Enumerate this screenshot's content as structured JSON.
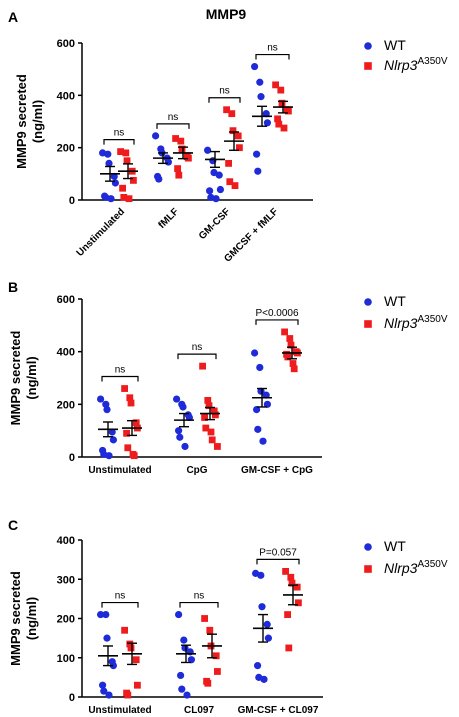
{
  "figure_title": "MMP9",
  "colors": {
    "wt": "#1f2ad8",
    "mutant": "#ee1c1c",
    "axis": "#000000"
  },
  "legend": {
    "wt_label": "WT",
    "mutant_label": "Nlrp3",
    "mutant_superscript": "A350V"
  },
  "chart_data": [
    {
      "panel": "A",
      "type": "scatter",
      "ylabel_line1": "MMP9 secreted",
      "ylabel_line2": "(ng/ml)",
      "ylim": [
        0,
        600
      ],
      "yticks": [
        "0",
        "200",
        "400",
        "600"
      ],
      "categories": [
        "Unstimulated",
        "fMLF",
        "GM-CSF",
        "GMCSF + fMLF"
      ],
      "rotate_labels": true,
      "series": [
        {
          "name": "WT",
          "points": [
            [
              180,
              175,
              140,
              90,
              65,
              15,
              10,
              5
            ],
            [
              245,
              195,
              180,
              160,
              145,
              90,
              80
            ],
            [
              190,
              150,
              105,
              95,
              40,
              35,
              10,
              5
            ],
            [
              510,
              450,
              395,
              330,
              295,
              175,
              110
            ]
          ],
          "mean": [
            100,
            160,
            155,
            320
          ],
          "sem": [
            28,
            20,
            30,
            38
          ]
        },
        {
          "name": "Nlrp3A350V",
          "points": [
            [
              185,
              180,
              150,
              110,
              75,
              45,
              10,
              5
            ],
            [
              235,
              225,
              195,
              165,
              160,
              120,
              95
            ],
            [
              345,
              330,
              265,
              245,
              200,
              140,
              70,
              55
            ],
            [
              440,
              420,
              370,
              345,
              340,
              310,
              290,
              275
            ]
          ],
          "mean": [
            110,
            180,
            225,
            355
          ],
          "sem": [
            28,
            22,
            35,
            22
          ]
        }
      ],
      "annotations": [
        {
          "group": 0,
          "text": "ns"
        },
        {
          "group": 1,
          "text": "ns"
        },
        {
          "group": 2,
          "text": "ns"
        },
        {
          "group": 3,
          "text": "ns"
        }
      ]
    },
    {
      "panel": "B",
      "type": "scatter",
      "ylabel_line1": "MMP9 secreted",
      "ylabel_line2": "(ng/ml)",
      "ylim": [
        0,
        600
      ],
      "yticks": [
        "0",
        "200",
        "400",
        "600"
      ],
      "categories": [
        "Unstimulated",
        "CpG",
        "GM-CSF + CpG"
      ],
      "rotate_labels": false,
      "series": [
        {
          "name": "WT",
          "points": [
            [
              220,
              200,
              180,
              95,
              65,
              25,
              10,
              5
            ],
            [
              220,
              200,
              190,
              160,
              150,
              100,
              75,
              40
            ],
            [
              395,
              340,
              250,
              235,
              200,
              180,
              105,
              60
            ]
          ],
          "mean": [
            105,
            140,
            225
          ],
          "sem": [
            28,
            25,
            35
          ]
        },
        {
          "name": "Nlrp3A350V",
          "points": [
            [
              260,
              225,
              205,
              130,
              110,
              90,
              35,
              10,
              5
            ],
            [
              345,
              215,
              195,
              175,
              160,
              150,
              110,
              95,
              65,
              40
            ],
            [
              475,
              450,
              425,
              400,
              395,
              390,
              380,
              355,
              335
            ]
          ],
          "mean": [
            110,
            165,
            395
          ],
          "sem": [
            28,
            23,
            22
          ]
        }
      ],
      "annotations": [
        {
          "group": 0,
          "text": "ns"
        },
        {
          "group": 1,
          "text": "ns"
        },
        {
          "group": 2,
          "text": "P<0.0006"
        }
      ]
    },
    {
      "panel": "C",
      "type": "scatter",
      "ylabel_line1": "MMP9 secreted",
      "ylabel_line2": "(ng/ml)",
      "ylim": [
        0,
        400
      ],
      "yticks": [
        "0",
        "100",
        "200",
        "300",
        "400"
      ],
      "categories": [
        "Unstimulated",
        "CL097",
        "GM-CSF + CL097"
      ],
      "rotate_labels": false,
      "series": [
        {
          "name": "WT",
          "points": [
            [
              210,
              210,
              150,
              90,
              80,
              30,
              15,
              5
            ],
            [
              210,
              145,
              125,
              115,
              95,
              55,
              20,
              5
            ],
            [
              315,
              310,
              230,
              185,
              150,
              80,
              50,
              45
            ]
          ],
          "mean": [
            105,
            110,
            175
          ],
          "sem": [
            25,
            22,
            35
          ]
        },
        {
          "name": "Nlrp3A350V",
          "points": [
            [
              170,
              135,
              125,
              95,
              30,
              10,
              5
            ],
            [
              200,
              170,
              130,
              105,
              65,
              40,
              35
            ],
            [
              320,
              305,
              290,
              280,
              240,
              210,
              125
            ]
          ],
          "mean": [
            110,
            130,
            260
          ],
          "sem": [
            27,
            30,
            25
          ]
        }
      ],
      "annotations": [
        {
          "group": 0,
          "text": "ns"
        },
        {
          "group": 1,
          "text": "ns"
        },
        {
          "group": 2,
          "text": "P=0.057"
        }
      ]
    }
  ]
}
